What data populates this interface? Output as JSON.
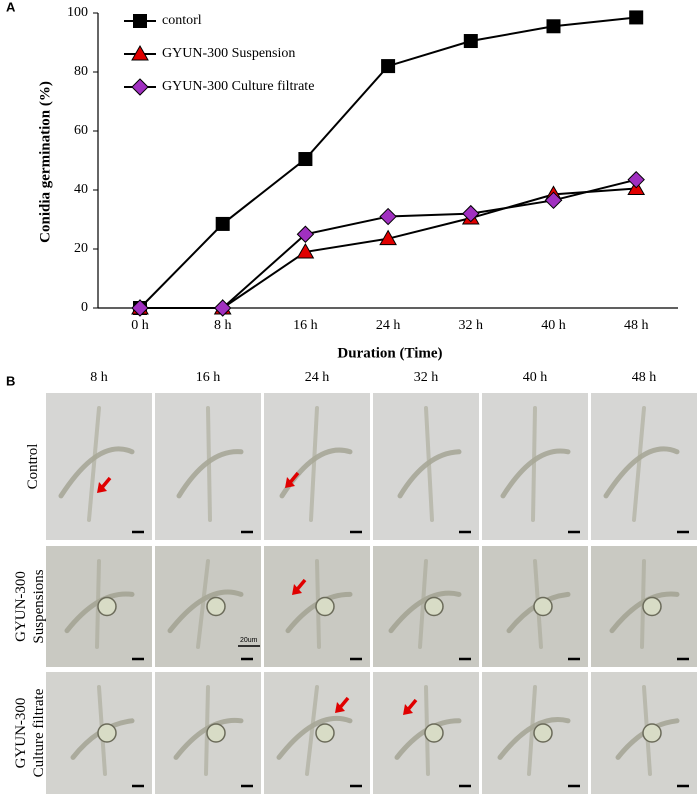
{
  "chart_data": {
    "type": "line",
    "panel": "A",
    "categories": [
      "0 h",
      "8 h",
      "16 h",
      "24 h",
      "32 h",
      "40 h",
      "48 h"
    ],
    "xlabel": "Duration (Time)",
    "ylabel": "Conidia germination (%)",
    "ylim": [
      0,
      100
    ],
    "yticks": [
      0,
      20,
      40,
      60,
      80,
      100
    ],
    "grid": false,
    "legend": "upper left",
    "line_color": "#000000",
    "series": [
      {
        "name": "contorl",
        "marker": "square",
        "color": "#000000",
        "values": [
          0,
          28.5,
          50.5,
          82,
          90.5,
          95.5,
          98.5
        ]
      },
      {
        "name": "GYUN-300 Suspension",
        "marker": "triangle",
        "color": "#e00000",
        "values": [
          0,
          0,
          19,
          23.5,
          30.5,
          38.5,
          40.5
        ]
      },
      {
        "name": "GYUN-300 Culture filtrate",
        "marker": "diamond",
        "color": "#a030c0",
        "values": [
          0,
          0,
          25,
          31,
          32,
          36.5,
          43.5
        ]
      }
    ]
  },
  "micrographs": {
    "panel": "B",
    "columns": [
      "8 h",
      "16 h",
      "24 h",
      "32 h",
      "40 h",
      "48 h"
    ],
    "rows": [
      [
        "Control"
      ],
      [
        "GYUN-300",
        "Suspensions"
      ],
      [
        "GYUN-300",
        "Culture filtrate"
      ]
    ],
    "scale_label": "20um"
  }
}
